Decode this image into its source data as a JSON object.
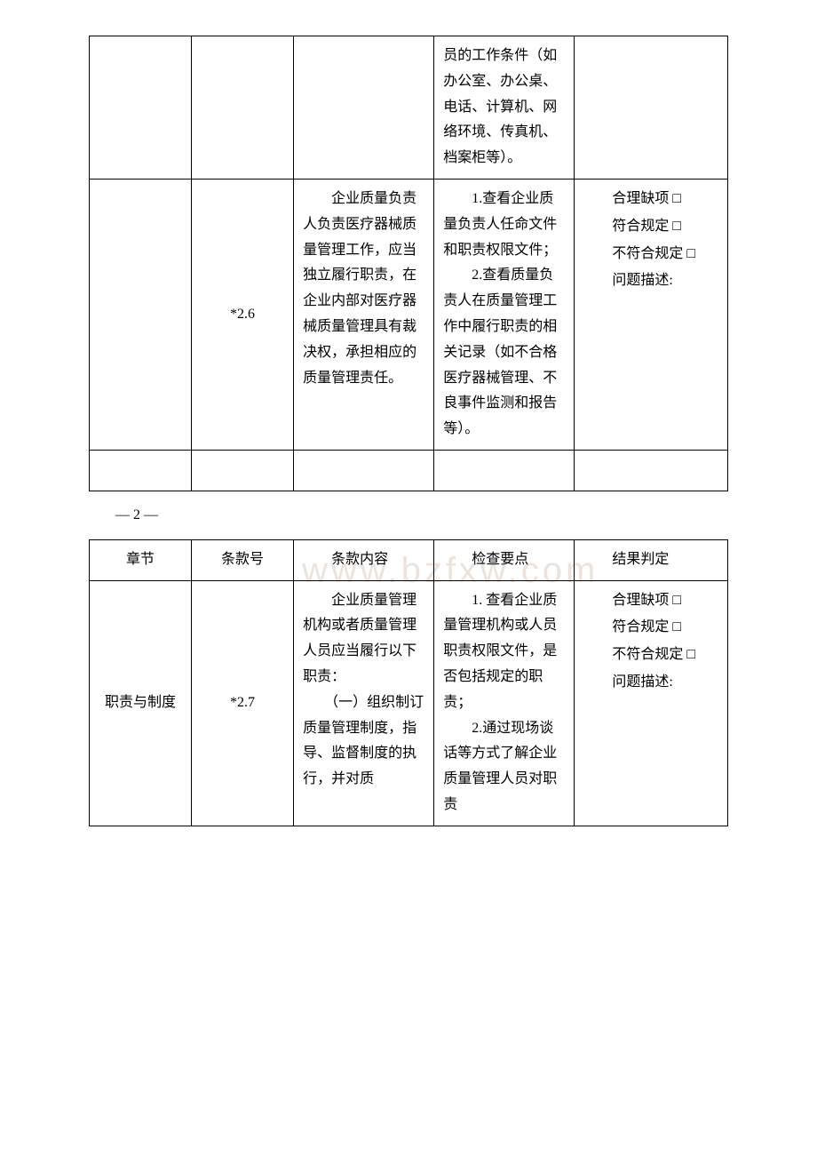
{
  "table1": {
    "r1": {
      "check": "员的工作条件（如办公室、办公桌、电话、计算机、网络环境、传真机、档案柜等）。"
    },
    "r2": {
      "clause": "*2.6",
      "content": "　　企业质量负责人负责医疗器械质量管理工作，应当独立履行职责，在企业内部对医疗器械质量管理具有裁决权，承担相应的质量管理责任。",
      "check1": "　　1.查看企业质量负责人任命文件和职责权限文件；",
      "check2": "　　2.查看质量负责人在质量管理工作中履行职责的相关记录（如不合格医疗器械管理、不良事件监测和报告等）。",
      "res1": "合理缺项 □",
      "res2": "符合规定 □",
      "res3": "不符合规定 □",
      "res4": "问题描述:"
    }
  },
  "pageNum": "— 2 —",
  "table2": {
    "header": {
      "c1": "章节",
      "c2": "条款号",
      "c3": "条款内容",
      "c4": "检查要点",
      "c5": "结果判定"
    },
    "r1": {
      "chapter": "职责与制度",
      "clause": "*2.7",
      "content1": "　　企业质量管理机构或者质量管理人员应当履行以下职责：",
      "content2": "　　（一）组织制订质量管理制度，指导、监督制度的执行，并对质",
      "check1": "　　1. 查看企业质量管理机构或人员职责权限文件，是否包括规定的职责；",
      "check2": "　　2.通过现场谈话等方式了解企业质量管理人员对职责",
      "res1": "合理缺项 □",
      "res2": "符合规定 □",
      "res3": "不符合规定 □",
      "res4": "问题描述:"
    }
  },
  "watermark": "www.bzfxw.com"
}
